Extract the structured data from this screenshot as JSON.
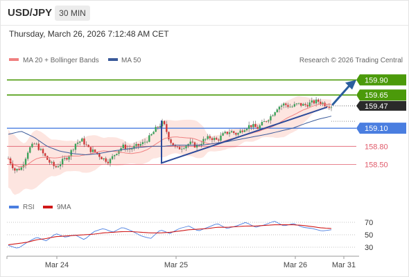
{
  "header": {
    "symbol": "USD/JPY",
    "timeframe": "30 MIN",
    "datetime": "Thursday, March 26, 2026 7:12:48 AM CET"
  },
  "legend": {
    "ma20": "MA 20 + Bollinger Bands",
    "ma50": "MA 50",
    "credit": "Research © 2026 Trading Central",
    "rsi": "RSI",
    "ma9": "9MA"
  },
  "colors": {
    "ma20": "#f08080",
    "ma50": "#3a5a9a",
    "bollinger_fill": "#fde0da",
    "resistance": "#4b9a0a",
    "support": "#4a7ee0",
    "pivot": "#e05a6a",
    "candle_up": "#3aa35a",
    "candle_down": "#d03a3a",
    "trend": "#2b4a9a",
    "arrow": "#2b5e9e",
    "rsi": "#4a7ee0",
    "rsi_ma": "#d01818"
  },
  "chart_data": {
    "type": "line",
    "title": "USD/JPY 30 MIN",
    "ylim": [
      158.15,
      160.1
    ],
    "x_ticks": [
      "Mar 24",
      "Mar 25",
      "Mar 26",
      "Mar 31"
    ],
    "price_levels": [
      {
        "value": 159.9,
        "label": "159.90",
        "kind": "resistance"
      },
      {
        "value": 159.65,
        "label": "159.65",
        "kind": "resistance"
      },
      {
        "value": 159.47,
        "label": "159.47",
        "kind": "current"
      },
      {
        "value": 159.1,
        "label": "159.10",
        "kind": "support"
      },
      {
        "value": 158.8,
        "label": "158.80",
        "kind": "pivot"
      },
      {
        "value": 158.5,
        "label": "158.50",
        "kind": "pivot"
      }
    ],
    "price_path": [
      158.6,
      158.4,
      158.45,
      158.75,
      158.85,
      158.7,
      158.55,
      158.45,
      158.55,
      158.65,
      158.85,
      158.9,
      158.75,
      158.7,
      158.6,
      158.55,
      158.7,
      158.8,
      158.75,
      158.8,
      158.85,
      158.95,
      159.1,
      159.2,
      158.9,
      158.75,
      158.8,
      158.85,
      158.8,
      158.9,
      158.95,
      158.9,
      159.0,
      159.05,
      159.0,
      159.1,
      159.15,
      159.1,
      159.2,
      159.3,
      159.45,
      159.5,
      159.45,
      159.5,
      159.48,
      159.52,
      159.55,
      159.5,
      159.47
    ],
    "ma50_path": [
      159.0,
      159.05,
      158.95,
      158.8,
      158.72,
      158.68,
      158.66,
      158.68,
      158.72,
      158.75,
      158.78,
      158.8,
      158.8,
      158.82,
      158.82,
      158.82,
      158.85,
      158.88,
      158.92,
      158.96,
      159.0,
      159.05,
      159.1,
      159.18,
      159.25,
      159.3
    ],
    "trendlines": [
      {
        "from": [
          0.0,
          158.52
        ],
        "to": [
          1.0,
          159.45
        ]
      }
    ],
    "rsi": {
      "ylim": [
        20,
        80
      ],
      "levels": [
        70,
        50,
        30
      ],
      "rsi_path": [
        33,
        28,
        38,
        46,
        40,
        52,
        46,
        50,
        42,
        55,
        60,
        54,
        62,
        56,
        48,
        44,
        58,
        52,
        60,
        64,
        56,
        62,
        68,
        60,
        64,
        70,
        62,
        66,
        72,
        64,
        68,
        62,
        60,
        56,
        58
      ],
      "ma_path": [
        34,
        36,
        38,
        42,
        44,
        47,
        48,
        49,
        50,
        51,
        53,
        54,
        55,
        55,
        54,
        53,
        53,
        54,
        56,
        58,
        59,
        60,
        62,
        62,
        63,
        64,
        64,
        65,
        66,
        66,
        66,
        65,
        63,
        61,
        60
      ]
    }
  }
}
